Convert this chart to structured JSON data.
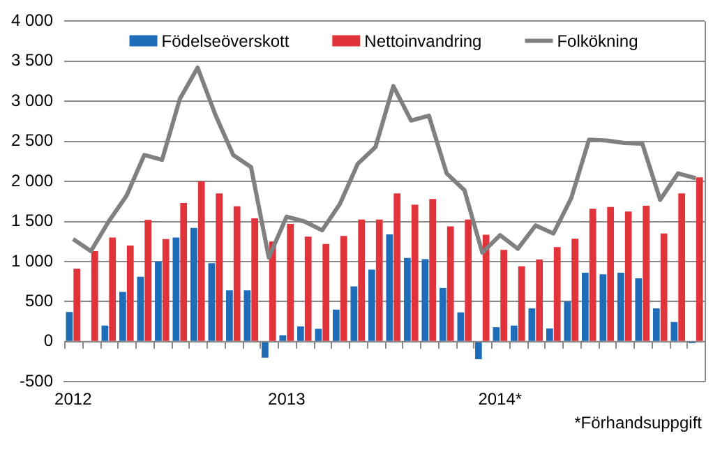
{
  "chart_data": {
    "type": "bar",
    "categories": [
      "2012",
      null,
      null,
      null,
      null,
      null,
      null,
      null,
      null,
      null,
      null,
      null,
      "2013",
      null,
      null,
      null,
      null,
      null,
      null,
      null,
      null,
      null,
      null,
      null,
      "2014*",
      null,
      null,
      null,
      null,
      null,
      null,
      null,
      null,
      null,
      null,
      null
    ],
    "series": [
      {
        "name": "Födelseöverskott",
        "color": "#1f6cb8",
        "values": [
          370,
          0,
          200,
          620,
          810,
          1000,
          1300,
          1420,
          980,
          640,
          640,
          -200,
          80,
          190,
          160,
          400,
          690,
          900,
          1340,
          1045,
          1030,
          670,
          365,
          -220,
          180,
          200,
          415,
          165,
          500,
          860,
          840,
          860,
          790,
          415,
          245,
          -20
        ]
      },
      {
        "name": "Nettoinvandring",
        "color": "#e0333a",
        "values": [
          910,
          1130,
          1300,
          1200,
          1520,
          1280,
          1730,
          2000,
          1850,
          1690,
          1540,
          1250,
          1470,
          1310,
          1220,
          1320,
          1525,
          1525,
          1850,
          1710,
          1780,
          1440,
          1525,
          1335,
          1145,
          940,
          1025,
          1180,
          1285,
          1660,
          1680,
          1625,
          1695,
          1350,
          1850,
          2050
        ]
      },
      {
        "name": "Folkökning",
        "type": "line",
        "color": "#808080",
        "values": [
          1280,
          1130,
          1500,
          1820,
          2330,
          2270,
          3030,
          3420,
          2830,
          2330,
          2180,
          1050,
          1560,
          1500,
          1390,
          1720,
          2220,
          2430,
          3190,
          2760,
          2820,
          2100,
          1890,
          1110,
          1330,
          1160,
          1450,
          1350,
          1790,
          2520,
          2510,
          2480,
          2470,
          1770,
          2100,
          2040
        ]
      }
    ],
    "ylim": [
      -500,
      4000
    ],
    "yticks": [
      {
        "value": -500,
        "label": "-500"
      },
      0,
      500,
      {
        "value": 1000,
        "label": "1 000"
      },
      {
        "value": 1500,
        "label": "1 500"
      },
      {
        "value": 2000,
        "label": "2 000"
      },
      {
        "value": 2500,
        "label": "2 500"
      },
      {
        "value": 3000,
        "label": "3 000"
      },
      {
        "value": 3500,
        "label": "3 500"
      },
      {
        "value": 4000,
        "label": "4 000"
      }
    ],
    "grid": "y",
    "legend": "top",
    "marker": "none",
    "annotations": [
      "*Förhandsuppgift"
    ]
  }
}
